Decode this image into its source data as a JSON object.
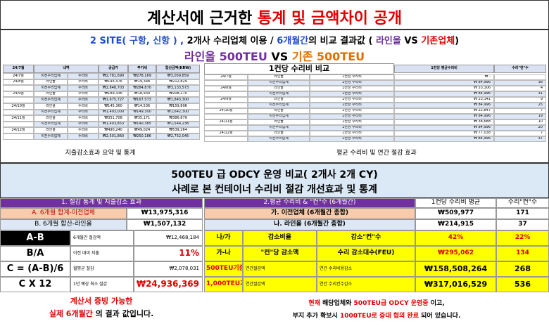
{
  "header": {
    "title": [
      {
        "text": "계산서에 근거한 ",
        "color": "#000"
      },
      {
        "text": "통계 및 금액차이 공개",
        "color": "#e00000"
      }
    ],
    "line1": [
      {
        "text": "2 SITE( 구항, 신항 ) , ",
        "color": "#1f4ec8"
      },
      {
        "text": "2개사 수리업체 이용 / ",
        "color": "#000"
      },
      {
        "text": "6개월간",
        "color": "#1f4ec8"
      },
      {
        "text": "의 비교  결과값 ( ",
        "color": "#000"
      },
      {
        "text": "라인올",
        "color": "#7030a0"
      },
      {
        "text": " VS ",
        "color": "#000"
      },
      {
        "text": "기존업체",
        "color": "#e00000"
      },
      {
        "text": ")",
        "color": "#000"
      }
    ],
    "line2": [
      {
        "text": "라인올 500TEU",
        "color": "#7030a0"
      },
      {
        "text": " VS ",
        "color": "#000"
      },
      {
        "text": "기존 500TEU",
        "color": "#e07000"
      }
    ]
  },
  "left_table": {
    "columns": [
      "24/7월",
      "내역",
      "공급가",
      "부가세",
      "합산금액(KRW)"
    ],
    "rows": [
      [
        "24/7월",
        "이전수리업체",
        "수리비",
        "₩2,781,690",
        "₩278,169",
        "₩3,059,859"
      ],
      [
        "24/8월",
        "라인올",
        "수리비",
        "₩193,476",
        "₩19,348",
        "₩212,824"
      ],
      [
        "",
        "이전수리업체",
        "수리비",
        "₩2,848,703",
        "₩284,870",
        "₩3,133,573"
      ],
      [
        "24/9월",
        "라인올",
        "수리비",
        "₩189,336",
        "₩18,934",
        "₩208,270"
      ],
      [
        "",
        "이전수리업체",
        "수리비",
        "₩1,675,727",
        "₩167,573",
        "₩1,843,300"
      ],
      [
        "24/10월",
        "라인올",
        "수리비",
        "₩145,360",
        "₩14,536",
        "₩159,896"
      ],
      [
        "",
        "이전수리업체",
        "수리비",
        "₩1,493,000",
        "₩149,300",
        "₩1,642,300"
      ],
      [
        "24/11월",
        "라인올",
        "수리비",
        "₩351,708",
        "₩35,171",
        "₩386,879"
      ],
      [
        "",
        "이전수리업체",
        "수리비",
        "₩1,403,853",
        "₩140,385",
        "₩1,544,238"
      ],
      [
        "24/12월",
        "라인올",
        "수리비",
        "₩490,240",
        "₩49,024",
        "₩539,264"
      ],
      [
        "",
        "이전수리업체",
        "수리비",
        "₩2,501,860",
        "₩250,186",
        "₩2,752,046"
      ]
    ],
    "caption": "지출감소효과 요약 및 통계"
  },
  "right_table": {
    "title": "1컨당 수리비 비교",
    "columns": [
      "1컨당 평균수리비",
      "수리\"컨\"수"
    ],
    "rows": [
      [
        "24/7월",
        "라인올",
        "1컨당 수리비",
        "₩  -",
        ""
      ],
      [
        "",
        "이전수리업체",
        "1컨당 수리비",
        "₩  84,996",
        "36"
      ],
      [
        "24/8월",
        "라인올",
        "1컨당 수리비",
        "₩  53,306",
        "4"
      ],
      [
        "",
        "이전수리업체",
        "1컨당 수리비",
        "₩  84,996",
        "31"
      ],
      [
        "24/9월",
        "라인올",
        "1컨당 수리비",
        "₩  23,141",
        "9"
      ],
      [
        "",
        "이전수리업체",
        "1컨당 수리비",
        "₩  84,996",
        "25"
      ],
      [
        "24/10월",
        "라인올",
        "1컨당 수리비",
        "₩  22,847",
        "7"
      ],
      [
        "",
        "이전수리업체",
        "1컨당 수리비",
        "₩  84,996",
        "19"
      ],
      [
        "24/11월",
        "라인올",
        "1컨당 수리비",
        "₩  38,688",
        "10"
      ],
      [
        "",
        "이전수리업체",
        "1컨당 수리비",
        "₩  84,996",
        "20"
      ],
      [
        "24/12월",
        "라인올",
        "1컨당 수리비",
        "₩  77,038",
        "7"
      ],
      [
        "",
        "이전수리업체",
        "1컨당 수리비",
        "₩  84,996",
        "37"
      ]
    ],
    "caption": "평균 수리비 및 연간 절감 효과"
  },
  "banner": {
    "line1": "500TEU 급 ODCY 운영 비교( 2개사 2개 CY)",
    "line2": "사례로 본 컨테이너 수리비 절감 개선효과  및 통계"
  },
  "savings": {
    "header": "1. 절감 통계 및 지출감소 효과",
    "a": [
      "A. 6개월 합계-이전업체",
      "₩13,975,316"
    ],
    "b": [
      "B. 6개월 합산-라인올",
      "₩1,507,132"
    ],
    "rows": [
      [
        "A-B",
        "6개월간 절감액",
        "₩12,468,184"
      ],
      [
        "B/A",
        "이전 대비 지출",
        "11%"
      ],
      [
        "C = (A-B)/6",
        "월평균 절감",
        "₩2,078,031"
      ],
      [
        "C X 12",
        "1년 예상 최소 절감",
        "₩24,936,369"
      ]
    ],
    "footer1": "계산서 증빙 가능한",
    "footer2": [
      {
        "text": "실제 6개월간",
        "color": "#e00000"
      },
      {
        "text": " 의 결과 값입니다.",
        "color": "#000"
      }
    ]
  },
  "average": {
    "header": "2.평균 수리비 & \"컨\"수 (6개월간)",
    "col1": "1컨당 수리비 평균",
    "col2": "수리\"컨\"수",
    "ga": [
      "가. 이전업체 (6개월간 종합)",
      "₩509,977",
      "171"
    ],
    "na": [
      "나. 라인올  (6개월간 종합)",
      "₩214,915",
      "37"
    ],
    "rows": [
      [
        "나/가",
        "감소비율",
        "감소\"컨\"수",
        "42%",
        "22%"
      ],
      [
        "가-나",
        "\"컨\"당 감소액",
        "수리 감소대수(FEU)",
        "₩295,062",
        "134"
      ],
      [
        "500TEU기준",
        "연간절감액",
        "연간 수리비용감소",
        "₩158,508,264",
        "268"
      ],
      [
        "1,000TEU기준",
        "연간절감액",
        "연간 수리컨수감소",
        "₩317,016,529",
        "536"
      ]
    ],
    "footer1": [
      {
        "text": "현재",
        "color": "#e00000"
      },
      {
        "text": " 해당업체와 ",
        "color": "#000"
      },
      {
        "text": "500TEU급 ODCY 운영중",
        "color": "#e00000"
      },
      {
        "text": " 이고,",
        "color": "#000"
      }
    ],
    "footer2": [
      {
        "text": "부지 추가 확보시 ",
        "color": "#000"
      },
      {
        "text": "1000TEU로 증대 협의 완료",
        "color": "#e00000"
      },
      {
        "text": " 되어 있습니다.",
        "color": "#000"
      }
    ]
  }
}
